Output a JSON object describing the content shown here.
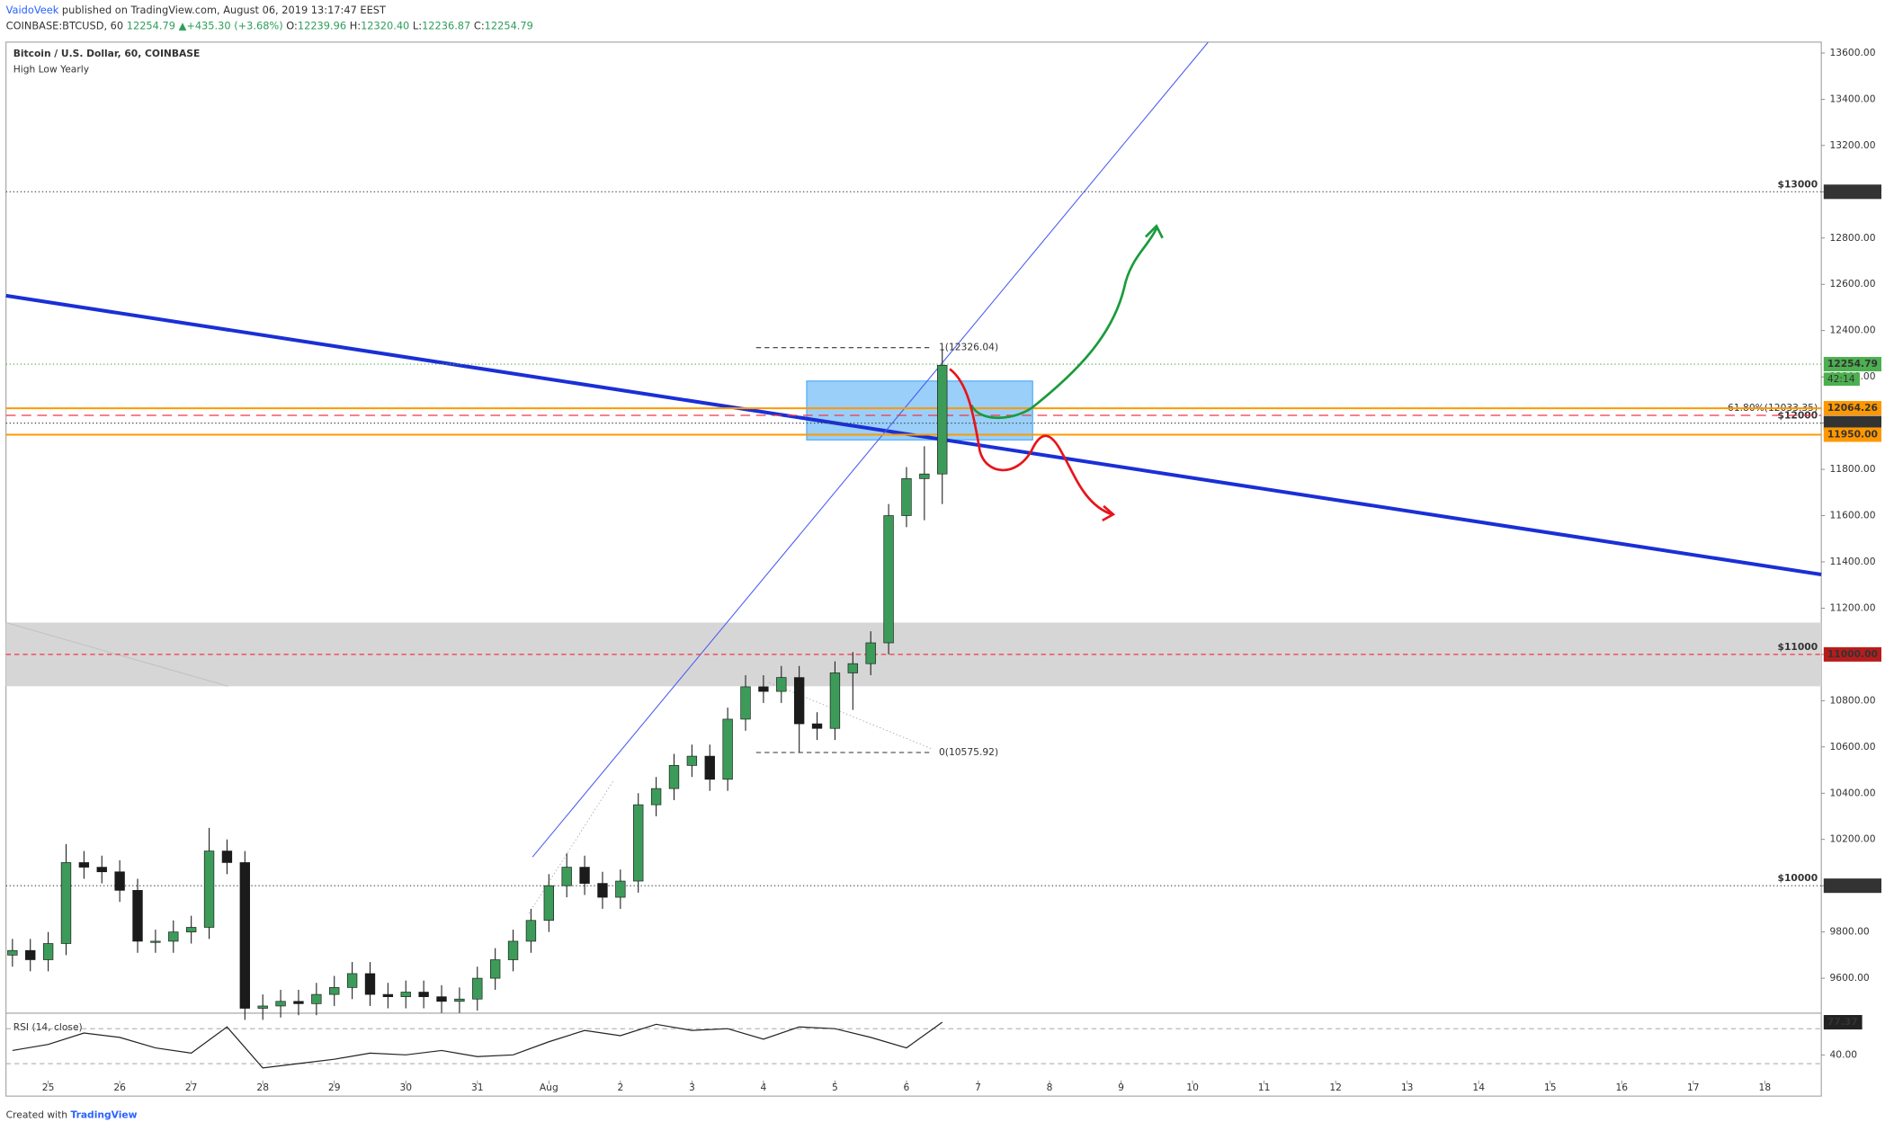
{
  "header": {
    "author": "VaidoVeek",
    "published": "published on TradingView.com, August 06, 2019 13:17:47 EEST",
    "symbol": "COINBASE:BTCUSD, 60",
    "last": "12254.79",
    "change": "▲+435.30 (+3.68%)",
    "ohlc": [
      {
        "key": "O:",
        "value": "12239.96"
      },
      {
        "key": "H:",
        "value": "12320.40"
      },
      {
        "key": "L:",
        "value": "12236.87"
      },
      {
        "key": "C:",
        "value": "12254.79"
      }
    ]
  },
  "footer": {
    "prefix": "Created with",
    "brand": "TradingView"
  },
  "chart_data": {
    "type": "candlestick",
    "title": "Bitcoin / U.S. Dollar, 60, COINBASE",
    "subtitle": "High Low Yearly",
    "up_color": "#3d9b5a",
    "down_color": "#1b1b1b",
    "x": [
      24.5,
      24.75,
      25,
      25.25,
      25.5,
      25.75,
      26,
      26.25,
      26.5,
      26.75,
      27,
      27.25,
      27.5,
      27.75,
      28,
      28.25,
      28.5,
      28.75,
      29,
      29.25,
      29.5,
      29.75,
      30,
      30.25,
      30.5,
      30.75,
      31,
      31.25,
      31.5,
      31.75,
      32,
      32.25,
      32.5,
      32.75,
      33,
      33.25,
      33.5,
      33.75,
      34,
      34.25,
      34.5,
      34.75,
      35,
      35.25,
      35.5,
      35.75,
      36,
      36.25,
      36.5,
      36.75,
      37,
      37.25,
      37.5
    ],
    "open": [
      9700,
      9720,
      9680,
      9750,
      10100,
      10080,
      10060,
      9980,
      9760,
      9760,
      9800,
      9820,
      10150,
      10100,
      9470,
      9480,
      9500,
      9490,
      9530,
      9560,
      9620,
      9530,
      9520,
      9540,
      9520,
      9500,
      9510,
      9600,
      9680,
      9760,
      9850,
      10000,
      10080,
      10010,
      9950,
      10020,
      10350,
      10420,
      10520,
      10560,
      10460,
      10720,
      10860,
      10840,
      10900,
      10700,
      10680,
      10920,
      10960,
      11050,
      11600,
      11760,
      11780
    ],
    "high": [
      9770,
      9770,
      9800,
      10180,
      10150,
      10130,
      10110,
      10030,
      9810,
      9850,
      9870,
      10250,
      10200,
      10150,
      9530,
      9550,
      9550,
      9580,
      9610,
      9670,
      9670,
      9580,
      9590,
      9590,
      9570,
      9560,
      9650,
      9730,
      9810,
      9900,
      10050,
      10140,
      10130,
      10060,
      10070,
      10400,
      10470,
      10570,
      10610,
      10610,
      10770,
      10910,
      10910,
      10950,
      10950,
      10750,
      10970,
      11010,
      11100,
      11650,
      11810,
      11900,
      12320
    ],
    "low": [
      9650,
      9630,
      9630,
      9700,
      10030,
      10010,
      9930,
      9710,
      9710,
      9710,
      9750,
      9770,
      10050,
      9420,
      9420,
      9430,
      9440,
      9440,
      9480,
      9510,
      9480,
      9470,
      9470,
      9470,
      9450,
      9450,
      9460,
      9550,
      9630,
      9710,
      9800,
      9950,
      9960,
      9900,
      9900,
      9970,
      10300,
      10370,
      10470,
      10410,
      10410,
      10670,
      10790,
      10790,
      10576,
      10630,
      10630,
      10760,
      10910,
      11000,
      11550,
      11580,
      11650
    ],
    "close": [
      9720,
      9680,
      9750,
      10100,
      10080,
      10060,
      9980,
      9760,
      9760,
      9800,
      9820,
      10150,
      10100,
      9470,
      9480,
      9500,
      9490,
      9530,
      9560,
      9620,
      9530,
      9520,
      9540,
      9520,
      9500,
      9510,
      9600,
      9680,
      9760,
      9850,
      10000,
      10080,
      10010,
      9950,
      10020,
      10350,
      10420,
      10520,
      10560,
      10460,
      10720,
      10860,
      10840,
      10900,
      10700,
      10680,
      10920,
      10960,
      11050,
      11600,
      11760,
      11780,
      12250
    ],
    "xlim": [
      24.41,
      49.79
    ],
    "xticks": [
      {
        "value": 25,
        "label": "25"
      },
      {
        "value": 26,
        "label": "26"
      },
      {
        "value": 27,
        "label": "27"
      },
      {
        "value": 28,
        "label": "28"
      },
      {
        "value": 29,
        "label": "29"
      },
      {
        "value": 30,
        "label": "30"
      },
      {
        "value": 31,
        "label": "31"
      },
      {
        "value": 32,
        "label": "Aug"
      },
      {
        "value": 33,
        "label": "2"
      },
      {
        "value": 34,
        "label": "3"
      },
      {
        "value": 35,
        "label": "4"
      },
      {
        "value": 36,
        "label": "5"
      },
      {
        "value": 37,
        "label": "6"
      },
      {
        "value": 38,
        "label": "7"
      },
      {
        "value": 39,
        "label": "8"
      },
      {
        "value": 40,
        "label": "9"
      },
      {
        "value": 41,
        "label": "10"
      },
      {
        "value": 42,
        "label": "11"
      },
      {
        "value": 43,
        "label": "12"
      },
      {
        "value": 44,
        "label": "13"
      },
      {
        "value": 45,
        "label": "14"
      },
      {
        "value": 46,
        "label": "15"
      },
      {
        "value": 47,
        "label": "16"
      },
      {
        "value": 48,
        "label": "17"
      },
      {
        "value": 49,
        "label": "18"
      }
    ],
    "ylim": [
      9449,
      13647
    ],
    "yticks": [
      {
        "value": 9600,
        "label": "9600.00"
      },
      {
        "value": 9800,
        "label": "9800.00"
      },
      {
        "value": 10000,
        "label": "10000.00"
      },
      {
        "value": 10200,
        "label": "10200.00"
      },
      {
        "value": 10400,
        "label": "10400.00"
      },
      {
        "value": 10600,
        "label": "10600.00"
      },
      {
        "value": 10800,
        "label": "10800.00"
      },
      {
        "value": 11000,
        "label": "11000.00"
      },
      {
        "value": 11200,
        "label": "11200.00"
      },
      {
        "value": 11400,
        "label": "11400.00"
      },
      {
        "value": 11600,
        "label": "11600.00"
      },
      {
        "value": 11800,
        "label": "11800.00"
      },
      {
        "value": 12000,
        "label": "12000.00"
      },
      {
        "value": 12200,
        "label": "12200.00"
      },
      {
        "value": 12400,
        "label": "12400.00"
      },
      {
        "value": 12600,
        "label": "12600.00"
      },
      {
        "value": 12800,
        "label": "12800.00"
      },
      {
        "value": 13000,
        "label": "13000.00"
      },
      {
        "value": 13200,
        "label": "13200.00"
      },
      {
        "value": 13400,
        "label": "13400.00"
      },
      {
        "value": 13600,
        "label": "13600.00"
      }
    ],
    "levels": [
      {
        "value": 13000,
        "text": "$13000",
        "color": "#444444",
        "dash": "1,2"
      },
      {
        "value": 12000,
        "text": "$12000",
        "color": "#444444",
        "dash": "1,2"
      },
      {
        "value": 11000,
        "text": "$11000",
        "color": "#f23645",
        "dash": "4,3"
      },
      {
        "value": 10000,
        "text": "$10000",
        "color": "#444444",
        "dash": "1,2"
      },
      {
        "value": 12033.35,
        "text": "61.80%(12033.35)",
        "color": "#f23645",
        "dash": "8,5"
      },
      {
        "value": 12064.26,
        "color": "#ff9800",
        "dash": "none"
      },
      {
        "value": 11950,
        "color": "#ff9800",
        "dash": "none"
      },
      {
        "value": 12254.79,
        "color": "#4caf50",
        "dash": "1,2"
      }
    ],
    "price_labels": [
      {
        "value": 13000,
        "label": "13000.00",
        "color": "#333333"
      },
      {
        "value": 12254.79,
        "label": "12254.79",
        "color": "#4caf50"
      },
      {
        "value": 12064.26,
        "label": "12064.26",
        "color": "#ff9800"
      },
      {
        "value": 12000,
        "label": "12000.00",
        "color": "#333333"
      },
      {
        "value": 11950,
        "label": "11950.00",
        "color": "#ff9800"
      },
      {
        "value": 11000,
        "label": "11000.00",
        "color": "#b71c1c"
      },
      {
        "value": 10000,
        "label": "10000.00",
        "color": "#333333"
      }
    ],
    "countdown": "42:14",
    "fib": [
      {
        "value": 12326.04,
        "label": "1(12326.04)"
      },
      {
        "value": 10575.92,
        "label": "0(10575.92)"
      }
    ],
    "rsi": {
      "title": "RSI (14, close)",
      "x": [
        24.5,
        25,
        25.5,
        26,
        26.5,
        27,
        27.5,
        28,
        28.5,
        29,
        29.5,
        30,
        30.5,
        31,
        31.5,
        32,
        32.5,
        33,
        33.5,
        34,
        34.5,
        35,
        35.5,
        36,
        36.5,
        37,
        37.5
      ],
      "values": [
        45,
        52,
        65,
        60,
        48,
        42,
        72,
        25,
        30,
        35,
        42,
        40,
        45,
        38,
        40,
        55,
        68,
        62,
        75,
        68,
        70,
        58,
        72,
        70,
        60,
        48,
        77.37
      ],
      "ylim": [
        10,
        85
      ],
      "yticks": [
        {
          "value": 40,
          "label": "40.00"
        }
      ],
      "levels": [
        70,
        30
      ],
      "last_label": "77.37"
    }
  }
}
